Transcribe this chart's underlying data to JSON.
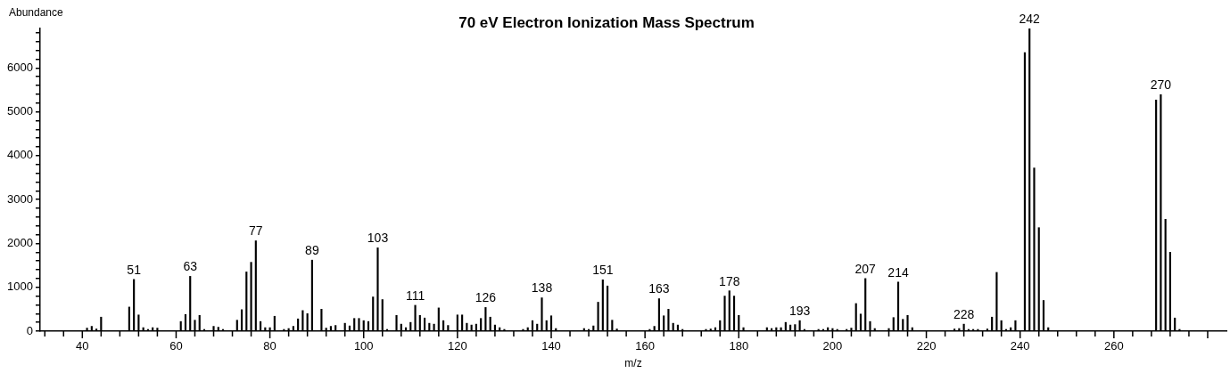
{
  "chart_data": {
    "type": "bar",
    "title": "70 eV Electron Ionization Mass Spectrum",
    "xlabel": "m/z",
    "ylabel": "Abundance",
    "color": "#000000",
    "x": [
      41,
      42,
      43,
      44,
      50,
      51,
      52,
      53,
      54,
      55,
      56,
      61,
      62,
      63,
      64,
      65,
      66,
      68,
      69,
      70,
      73,
      74,
      75,
      76,
      77,
      78,
      79,
      80,
      81,
      83,
      84,
      85,
      86,
      87,
      88,
      89,
      91,
      92,
      93,
      94,
      96,
      97,
      98,
      99,
      100,
      101,
      102,
      103,
      104,
      105,
      107,
      108,
      109,
      110,
      111,
      112,
      113,
      114,
      115,
      116,
      117,
      118,
      120,
      121,
      122,
      123,
      124,
      125,
      126,
      127,
      128,
      129,
      130,
      134,
      135,
      136,
      137,
      138,
      139,
      140,
      141,
      147,
      148,
      149,
      150,
      151,
      152,
      153,
      154,
      161,
      162,
      163,
      164,
      165,
      166,
      167,
      168,
      173,
      174,
      175,
      176,
      177,
      178,
      179,
      180,
      181,
      186,
      187,
      188,
      189,
      190,
      191,
      192,
      193,
      194,
      197,
      198,
      199,
      200,
      201,
      203,
      204,
      205,
      206,
      207,
      208,
      209,
      212,
      213,
      214,
      215,
      216,
      217,
      226,
      227,
      228,
      229,
      230,
      231,
      233,
      234,
      235,
      236,
      237,
      238,
      239,
      241,
      242,
      243,
      244,
      245,
      246,
      269,
      270,
      271,
      272,
      273,
      274
    ],
    "values": [
      70,
      110,
      50,
      320,
      550,
      1180,
      370,
      80,
      40,
      80,
      70,
      220,
      380,
      1250,
      250,
      360,
      40,
      110,
      90,
      40,
      250,
      490,
      1350,
      1570,
      2060,
      220,
      80,
      80,
      340,
      40,
      60,
      110,
      280,
      470,
      400,
      1620,
      500,
      70,
      110,
      130,
      180,
      120,
      290,
      290,
      240,
      220,
      780,
      1900,
      720,
      40,
      360,
      160,
      80,
      200,
      590,
      360,
      300,
      180,
      160,
      530,
      240,
      130,
      370,
      370,
      180,
      140,
      160,
      290,
      540,
      320,
      140,
      80,
      40,
      40,
      80,
      240,
      160,
      760,
      240,
      350,
      60,
      60,
      40,
      120,
      660,
      1170,
      1030,
      250,
      50,
      40,
      110,
      740,
      350,
      500,
      180,
      140,
      40,
      40,
      50,
      80,
      240,
      800,
      920,
      800,
      360,
      80,
      80,
      60,
      80,
      80,
      200,
      140,
      150,
      240,
      40,
      40,
      40,
      80,
      60,
      40,
      40,
      70,
      630,
      390,
      1200,
      220,
      60,
      60,
      310,
      1120,
      270,
      360,
      80,
      50,
      60,
      160,
      40,
      40,
      40,
      50,
      320,
      1340,
      240,
      40,
      80,
      240,
      6350,
      6900,
      3720,
      2360,
      700,
      80,
      5270,
      5390,
      2550,
      1800,
      300,
      40
    ],
    "xlim": [
      31,
      284
    ],
    "xticks": [
      {
        "value": 32,
        "label": null
      },
      {
        "value": 36,
        "label": null
      },
      40,
      {
        "value": 44,
        "label": null
      },
      {
        "value": 48,
        "label": null
      },
      {
        "value": 52,
        "label": null
      },
      {
        "value": 56,
        "label": null
      },
      60,
      {
        "value": 64,
        "label": null
      },
      {
        "value": 68,
        "label": null
      },
      {
        "value": 72,
        "label": null
      },
      {
        "value": 76,
        "label": null
      },
      80,
      {
        "value": 84,
        "label": null
      },
      {
        "value": 88,
        "label": null
      },
      {
        "value": 92,
        "label": null
      },
      {
        "value": 96,
        "label": null
      },
      100,
      {
        "value": 104,
        "label": null
      },
      {
        "value": 108,
        "label": null
      },
      {
        "value": 112,
        "label": null
      },
      {
        "value": 116,
        "label": null
      },
      120,
      {
        "value": 124,
        "label": null
      },
      {
        "value": 128,
        "label": null
      },
      {
        "value": 132,
        "label": null
      },
      {
        "value": 136,
        "label": null
      },
      140,
      {
        "value": 144,
        "label": null
      },
      {
        "value": 148,
        "label": null
      },
      {
        "value": 152,
        "label": null
      },
      {
        "value": 156,
        "label": null
      },
      160,
      {
        "value": 164,
        "label": null
      },
      {
        "value": 168,
        "label": null
      },
      {
        "value": 172,
        "label": null
      },
      {
        "value": 176,
        "label": null
      },
      180,
      {
        "value": 184,
        "label": null
      },
      {
        "value": 188,
        "label": null
      },
      {
        "value": 192,
        "label": null
      },
      {
        "value": 196,
        "label": null
      },
      200,
      {
        "value": 204,
        "label": null
      },
      {
        "value": 208,
        "label": null
      },
      {
        "value": 212,
        "label": null
      },
      {
        "value": 216,
        "label": null
      },
      220,
      {
        "value": 224,
        "label": null
      },
      {
        "value": 228,
        "label": null
      },
      {
        "value": 232,
        "label": null
      },
      {
        "value": 236,
        "label": null
      },
      240,
      {
        "value": 244,
        "label": null
      },
      {
        "value": 248,
        "label": null
      },
      {
        "value": 252,
        "label": null
      },
      {
        "value": 256,
        "label": null
      },
      260,
      {
        "value": 264,
        "label": null
      },
      {
        "value": 268,
        "label": null
      },
      {
        "value": 272,
        "label": null
      },
      {
        "value": 276,
        "label": null
      },
      {
        "value": 280,
        "label": null
      }
    ],
    "ylim": [
      0,
      6900
    ],
    "yticks": [
      0,
      {
        "value": 200,
        "label": null
      },
      {
        "value": 400,
        "label": null
      },
      {
        "value": 600,
        "label": null
      },
      {
        "value": 800,
        "label": null
      },
      1000,
      {
        "value": 1200,
        "label": null
      },
      {
        "value": 1400,
        "label": null
      },
      {
        "value": 1600,
        "label": null
      },
      {
        "value": 1800,
        "label": null
      },
      2000,
      {
        "value": 2200,
        "label": null
      },
      {
        "value": 2400,
        "label": null
      },
      {
        "value": 2600,
        "label": null
      },
      {
        "value": 2800,
        "label": null
      },
      3000,
      {
        "value": 3200,
        "label": null
      },
      {
        "value": 3400,
        "label": null
      },
      {
        "value": 3600,
        "label": null
      },
      {
        "value": 3800,
        "label": null
      },
      4000,
      {
        "value": 4200,
        "label": null
      },
      {
        "value": 4400,
        "label": null
      },
      {
        "value": 4600,
        "label": null
      },
      {
        "value": 4800,
        "label": null
      },
      5000,
      {
        "value": 5200,
        "label": null
      },
      {
        "value": 5400,
        "label": null
      },
      {
        "value": 5600,
        "label": null
      },
      {
        "value": 5800,
        "label": null
      },
      6000,
      {
        "value": 6200,
        "label": null
      },
      {
        "value": 6400,
        "label": null
      },
      {
        "value": 6600,
        "label": null
      },
      {
        "value": 6800,
        "label": null
      }
    ],
    "annotations": [
      {
        "text": "51",
        "x": 51,
        "y": 1180
      },
      {
        "text": "63",
        "x": 63,
        "y": 1250
      },
      {
        "text": "77",
        "x": 77,
        "y": 2060
      },
      {
        "text": "89",
        "x": 89,
        "y": 1620
      },
      {
        "text": "103",
        "x": 103,
        "y": 1900
      },
      {
        "text": "111",
        "x": 111,
        "y": 590
      },
      {
        "text": "126",
        "x": 126,
        "y": 540
      },
      {
        "text": "138",
        "x": 138,
        "y": 760
      },
      {
        "text": "151",
        "x": 151,
        "y": 1170
      },
      {
        "text": "163",
        "x": 163,
        "y": 740
      },
      {
        "text": "178",
        "x": 178,
        "y": 920
      },
      {
        "text": "193",
        "x": 193,
        "y": 240
      },
      {
        "text": "207",
        "x": 207,
        "y": 1200
      },
      {
        "text": "214",
        "x": 214,
        "y": 1120
      },
      {
        "text": "228",
        "x": 228,
        "y": 160
      },
      {
        "text": "242",
        "x": 242,
        "y": 6900
      },
      {
        "text": "270",
        "x": 270,
        "y": 5390
      }
    ]
  }
}
